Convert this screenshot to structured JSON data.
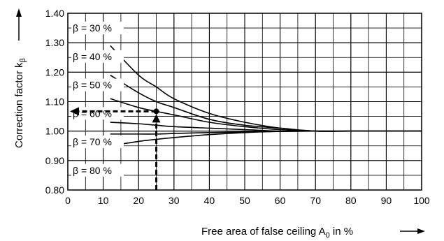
{
  "chart_data": {
    "type": "line",
    "title": "",
    "xlabel_main": "Free area of false ceiling A",
    "xlabel_sub": "0",
    "xlabel_unit": " in %",
    "ylabel_main": "Correction factor k",
    "ylabel_sub": "β",
    "xlim": [
      0,
      100
    ],
    "ylim": [
      0.8,
      1.4
    ],
    "x_ticks": [
      0,
      10,
      20,
      30,
      40,
      50,
      60,
      70,
      80,
      90,
      100
    ],
    "x_tick_labels": [
      "0",
      "10",
      "20",
      "30",
      "40",
      "50",
      "60",
      "70",
      "80",
      "90",
      "100"
    ],
    "y_ticks": [
      0.8,
      0.9,
      1.0,
      1.1,
      1.2,
      1.3,
      1.4
    ],
    "y_tick_labels": [
      "0.80",
      "0.90",
      "1.00",
      "1.10",
      "1.20",
      "1.30",
      "1.40"
    ],
    "grid": true,
    "minor_grid_step_x": 5,
    "minor_grid_step_y": 0.05,
    "series": [
      {
        "name": "β = 30 %",
        "x": [
          12,
          20,
          25,
          30,
          40,
          50,
          60,
          70,
          80,
          90,
          100
        ],
        "y": [
          1.29,
          1.19,
          1.15,
          1.11,
          1.06,
          1.03,
          1.01,
          1.0,
          1.0,
          1.0,
          1.0
        ]
      },
      {
        "name": "β = 40 %",
        "x": [
          12,
          20,
          25,
          30,
          40,
          50,
          60,
          70,
          80,
          90,
          100
        ],
        "y": [
          1.19,
          1.13,
          1.1,
          1.08,
          1.04,
          1.02,
          1.01,
          1.0,
          1.0,
          1.0,
          1.0
        ]
      },
      {
        "name": "β = 50 %",
        "x": [
          12,
          20,
          25,
          30,
          40,
          50,
          60,
          70,
          80,
          90,
          100
        ],
        "y": [
          1.11,
          1.08,
          1.067,
          1.055,
          1.03,
          1.015,
          1.005,
          1.0,
          1.0,
          1.0,
          1.0
        ]
      },
      {
        "name": "β = 60 %",
        "x": [
          12,
          20,
          25,
          30,
          40,
          50,
          60,
          70,
          80,
          90,
          100
        ],
        "y": [
          1.03,
          1.025,
          1.02,
          1.015,
          1.01,
          1.005,
          1.0,
          1.0,
          1.0,
          1.0,
          1.0
        ]
      },
      {
        "name": "β = 70 %",
        "x": [
          12,
          20,
          25,
          30,
          40,
          50,
          60,
          70,
          80,
          90,
          100
        ],
        "y": [
          0.99,
          0.99,
          0.99,
          0.992,
          0.995,
          0.997,
          0.999,
          1.0,
          1.0,
          1.0,
          1.0
        ]
      },
      {
        "name": "β = 80 %",
        "x": [
          12,
          20,
          25,
          30,
          40,
          50,
          60,
          70,
          80,
          90,
          100
        ],
        "y": [
          0.95,
          0.965,
          0.972,
          0.978,
          0.988,
          0.995,
          0.999,
          1.0,
          1.0,
          1.0,
          1.0
        ]
      }
    ],
    "example": {
      "x": 25,
      "y": 1.067
    }
  }
}
